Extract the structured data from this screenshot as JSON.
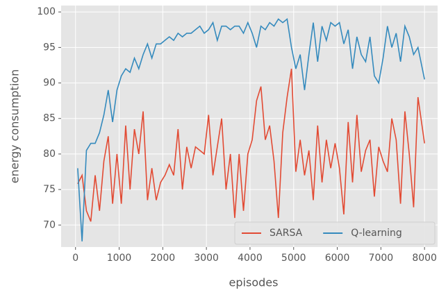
{
  "chart_data": {
    "type": "line",
    "xlabel": "episodes",
    "ylabel": "energy consumption",
    "x": [
      50,
      150,
      250,
      350,
      450,
      550,
      650,
      750,
      850,
      950,
      1050,
      1150,
      1250,
      1350,
      1450,
      1550,
      1650,
      1750,
      1850,
      1950,
      2050,
      2150,
      2250,
      2350,
      2450,
      2550,
      2650,
      2750,
      2850,
      2950,
      3050,
      3150,
      3250,
      3350,
      3450,
      3550,
      3650,
      3750,
      3850,
      3950,
      4050,
      4150,
      4250,
      4350,
      4450,
      4550,
      4650,
      4750,
      4850,
      4950,
      5050,
      5150,
      5250,
      5350,
      5450,
      5550,
      5650,
      5750,
      5850,
      5950,
      6050,
      6150,
      6250,
      6350,
      6450,
      6550,
      6650,
      6750,
      6850,
      6950,
      7050,
      7150,
      7250,
      7350,
      7450,
      7550,
      7650,
      7750,
      7850,
      8000
    ],
    "series": [
      {
        "name": "SARSA",
        "color": "#E24A33",
        "values": [
          75.8,
          77,
          72,
          70.5,
          77,
          72,
          79,
          82.5,
          73,
          80,
          73,
          84,
          75,
          83.5,
          80,
          86,
          73.5,
          78,
          73.5,
          76,
          77,
          78.5,
          77,
          83.5,
          75,
          81,
          78,
          81,
          80.5,
          80,
          85.5,
          77,
          81,
          85,
          75,
          80,
          71,
          80,
          72,
          80,
          82,
          87.5,
          89.5,
          82,
          84,
          79,
          71,
          83,
          88,
          92,
          77.5,
          82,
          77,
          80.5,
          73.5,
          84,
          76,
          82,
          78,
          81.5,
          78,
          71.5,
          84.5,
          76,
          85.5,
          77.5,
          80.5,
          82,
          74,
          81,
          79,
          77.5,
          85,
          82,
          73,
          86,
          80,
          72.5,
          88,
          81.5
        ]
      },
      {
        "name": "Q-learning",
        "color": "#348ABD",
        "values": [
          78,
          67.7,
          80.5,
          81.5,
          81.5,
          83,
          85.5,
          89,
          84.5,
          89,
          91,
          92,
          91.5,
          93.5,
          92,
          94,
          95.5,
          93.5,
          95.5,
          95.5,
          96,
          96.5,
          96,
          97,
          96.5,
          97,
          97,
          97.5,
          98,
          97,
          97.5,
          98.5,
          96,
          98,
          98,
          97.5,
          98,
          98,
          97,
          98.5,
          97,
          95,
          98,
          97.5,
          98.5,
          98,
          99,
          98.5,
          99,
          95,
          92,
          94,
          89,
          94,
          98.5,
          93,
          98,
          96,
          98.5,
          98,
          98.5,
          95.5,
          97.5,
          92,
          96.5,
          94,
          93,
          96.5,
          91,
          90,
          93.5,
          98,
          95,
          97,
          93,
          98,
          96.5,
          94,
          95,
          90.5
        ]
      }
    ],
    "xlim": [
      -330,
      8300
    ],
    "xticks": [
      0,
      1000,
      2000,
      3000,
      4000,
      5000,
      6000,
      7000,
      8000
    ],
    "ylim": [
      66.9,
      100.9
    ],
    "yticks": [
      70,
      75,
      80,
      85,
      90,
      95,
      100
    ],
    "grid": true,
    "legend": "lower right"
  }
}
